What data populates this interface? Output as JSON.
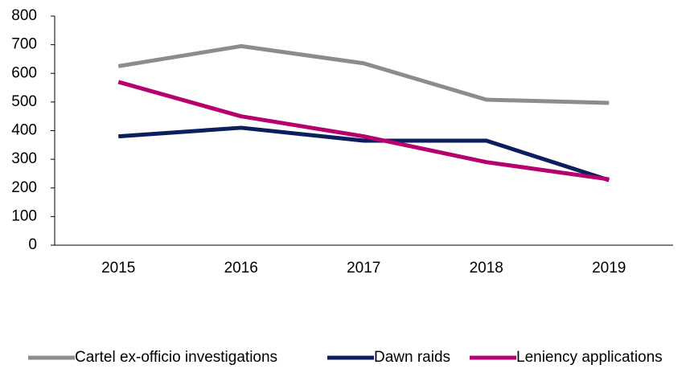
{
  "chart_data": {
    "type": "line",
    "categories": [
      "2015",
      "2016",
      "2017",
      "2018",
      "2019"
    ],
    "series": [
      {
        "name": "Cartel ex-officio investigations",
        "color": "#8c8c8c",
        "values": [
          625,
          695,
          635,
          508,
          497
        ]
      },
      {
        "name": "Dawn raids",
        "color": "#0a1f5c",
        "values": [
          380,
          410,
          365,
          365,
          227
        ]
      },
      {
        "name": "Leniency applications",
        "color": "#b5006e",
        "values": [
          570,
          450,
          380,
          290,
          230
        ]
      }
    ],
    "ylim": [
      0,
      800
    ],
    "yticks": [
      0,
      100,
      200,
      300,
      400,
      500,
      600,
      700,
      800
    ],
    "grid": false,
    "legend": "bottom"
  }
}
